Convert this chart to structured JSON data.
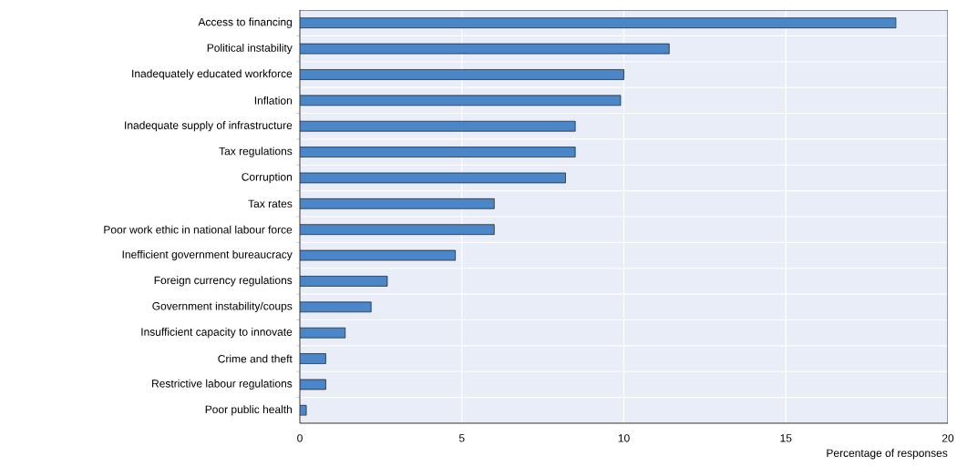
{
  "chart_data": {
    "type": "bar",
    "orientation": "horizontal",
    "xlabel": "Percentage of responses",
    "categories": [
      "Access to financing",
      "Political instability",
      "Inadequately educated workforce",
      "Inflation",
      "Inadequate supply of infrastructure",
      "Tax regulations",
      "Corruption",
      "Tax rates",
      "Poor work ethic in national labour force",
      "Inefficient government bureaucracy",
      "Foreign currency regulations",
      "Government instability/coups",
      "Insufficient capacity to innovate",
      "Crime and theft",
      "Restrictive labour regulations",
      "Poor public health"
    ],
    "values": [
      18.4,
      11.4,
      10.0,
      9.9,
      8.5,
      8.5,
      8.2,
      6.0,
      6.0,
      4.8,
      2.7,
      2.2,
      1.4,
      0.8,
      0.8,
      0.2
    ],
    "color": "#4a86c8",
    "xlim": [
      0,
      20
    ],
    "xticks": [
      0,
      5,
      10,
      15,
      20
    ],
    "grid": true
  }
}
